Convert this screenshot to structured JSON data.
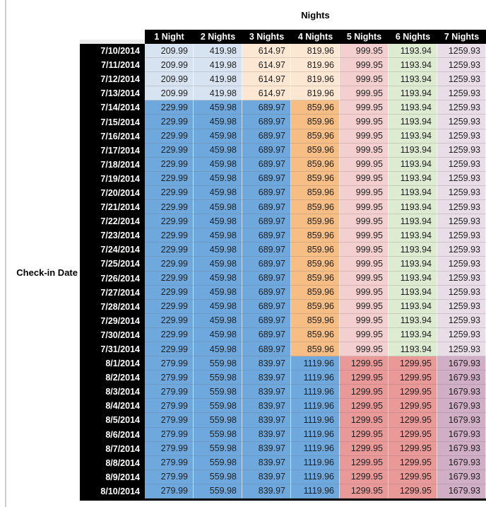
{
  "table": {
    "title": "Nights",
    "row_axis_label": "Check-in Date",
    "columns": [
      "1 Night",
      "2 Nights",
      "3 Nights",
      "4 Nights",
      "5 Nights",
      "6 Nights",
      "7 Nights"
    ],
    "tier_colors": {
      "A": [
        "light_blue",
        "light_blue",
        "light_orange",
        "light_orange",
        "light_red",
        "light_green",
        "light_purple"
      ],
      "B": [
        "medium_blue",
        "medium_blue",
        "medium_blue",
        "medium_orange",
        "light_red",
        "light_green",
        "light_purple"
      ],
      "C": [
        "medium_blue",
        "medium_blue",
        "medium_blue",
        "medium_blue",
        "medium_red",
        "medium_red",
        "medium_magenta"
      ]
    },
    "rows": [
      {
        "date": "7/10/2014",
        "tier": "A",
        "values": [
          "209.99",
          "419.98",
          "614.97",
          "819.96",
          "999.95",
          "1193.94",
          "1259.93"
        ]
      },
      {
        "date": "7/11/2014",
        "tier": "A",
        "values": [
          "209.99",
          "419.98",
          "614.97",
          "819.96",
          "999.95",
          "1193.94",
          "1259.93"
        ]
      },
      {
        "date": "7/12/2014",
        "tier": "A",
        "values": [
          "209.99",
          "419.98",
          "614.97",
          "819.96",
          "999.95",
          "1193.94",
          "1259.93"
        ]
      },
      {
        "date": "7/13/2014",
        "tier": "A",
        "values": [
          "209.99",
          "419.98",
          "614.97",
          "819.96",
          "999.95",
          "1193.94",
          "1259.93"
        ]
      },
      {
        "date": "7/14/2014",
        "tier": "B",
        "values": [
          "229.99",
          "459.98",
          "689.97",
          "859.96",
          "999.95",
          "1193.94",
          "1259.93"
        ]
      },
      {
        "date": "7/15/2014",
        "tier": "B",
        "values": [
          "229.99",
          "459.98",
          "689.97",
          "859.96",
          "999.95",
          "1193.94",
          "1259.93"
        ]
      },
      {
        "date": "7/16/2014",
        "tier": "B",
        "values": [
          "229.99",
          "459.98",
          "689.97",
          "859.96",
          "999.95",
          "1193.94",
          "1259.93"
        ]
      },
      {
        "date": "7/17/2014",
        "tier": "B",
        "values": [
          "229.99",
          "459.98",
          "689.97",
          "859.96",
          "999.95",
          "1193.94",
          "1259.93"
        ]
      },
      {
        "date": "7/18/2014",
        "tier": "B",
        "values": [
          "229.99",
          "459.98",
          "689.97",
          "859.96",
          "999.95",
          "1193.94",
          "1259.93"
        ]
      },
      {
        "date": "7/19/2014",
        "tier": "B",
        "values": [
          "229.99",
          "459.98",
          "689.97",
          "859.96",
          "999.95",
          "1193.94",
          "1259.93"
        ]
      },
      {
        "date": "7/20/2014",
        "tier": "B",
        "values": [
          "229.99",
          "459.98",
          "689.97",
          "859.96",
          "999.95",
          "1193.94",
          "1259.93"
        ]
      },
      {
        "date": "7/21/2014",
        "tier": "B",
        "values": [
          "229.99",
          "459.98",
          "689.97",
          "859.96",
          "999.95",
          "1193.94",
          "1259.93"
        ]
      },
      {
        "date": "7/22/2014",
        "tier": "B",
        "values": [
          "229.99",
          "459.98",
          "689.97",
          "859.96",
          "999.95",
          "1193.94",
          "1259.93"
        ]
      },
      {
        "date": "7/23/2014",
        "tier": "B",
        "values": [
          "229.99",
          "459.98",
          "689.97",
          "859.96",
          "999.95",
          "1193.94",
          "1259.93"
        ]
      },
      {
        "date": "7/24/2014",
        "tier": "B",
        "values": [
          "229.99",
          "459.98",
          "689.97",
          "859.96",
          "999.95",
          "1193.94",
          "1259.93"
        ]
      },
      {
        "date": "7/25/2014",
        "tier": "B",
        "values": [
          "229.99",
          "459.98",
          "689.97",
          "859.96",
          "999.95",
          "1193.94",
          "1259.93"
        ]
      },
      {
        "date": "7/26/2014",
        "tier": "B",
        "values": [
          "229.99",
          "459.98",
          "689.97",
          "859.96",
          "999.95",
          "1193.94",
          "1259.93"
        ]
      },
      {
        "date": "7/27/2014",
        "tier": "B",
        "values": [
          "229.99",
          "459.98",
          "689.97",
          "859.96",
          "999.95",
          "1193.94",
          "1259.93"
        ]
      },
      {
        "date": "7/28/2014",
        "tier": "B",
        "values": [
          "229.99",
          "459.98",
          "689.97",
          "859.96",
          "999.95",
          "1193.94",
          "1259.93"
        ]
      },
      {
        "date": "7/29/2014",
        "tier": "B",
        "values": [
          "229.99",
          "459.98",
          "689.97",
          "859.96",
          "999.95",
          "1193.94",
          "1259.93"
        ]
      },
      {
        "date": "7/30/2014",
        "tier": "B",
        "values": [
          "229.99",
          "459.98",
          "689.97",
          "859.96",
          "999.95",
          "1193.94",
          "1259.93"
        ]
      },
      {
        "date": "7/31/2014",
        "tier": "B",
        "values": [
          "229.99",
          "459.98",
          "689.97",
          "859.96",
          "999.95",
          "1193.94",
          "1259.93"
        ]
      },
      {
        "date": "8/1/2014",
        "tier": "C",
        "values": [
          "279.99",
          "559.98",
          "839.97",
          "1119.96",
          "1299.95",
          "1299.95",
          "1679.93"
        ]
      },
      {
        "date": "8/2/2014",
        "tier": "C",
        "values": [
          "279.99",
          "559.98",
          "839.97",
          "1119.96",
          "1299.95",
          "1299.95",
          "1679.93"
        ]
      },
      {
        "date": "8/3/2014",
        "tier": "C",
        "values": [
          "279.99",
          "559.98",
          "839.97",
          "1119.96",
          "1299.95",
          "1299.95",
          "1679.93"
        ]
      },
      {
        "date": "8/4/2014",
        "tier": "C",
        "values": [
          "279.99",
          "559.98",
          "839.97",
          "1119.96",
          "1299.95",
          "1299.95",
          "1679.93"
        ]
      },
      {
        "date": "8/5/2014",
        "tier": "C",
        "values": [
          "279.99",
          "559.98",
          "839.97",
          "1119.96",
          "1299.95",
          "1299.95",
          "1679.93"
        ]
      },
      {
        "date": "8/6/2014",
        "tier": "C",
        "values": [
          "279.99",
          "559.98",
          "839.97",
          "1119.96",
          "1299.95",
          "1299.95",
          "1679.93"
        ]
      },
      {
        "date": "8/7/2014",
        "tier": "C",
        "values": [
          "279.99",
          "559.98",
          "839.97",
          "1119.96",
          "1299.95",
          "1299.95",
          "1679.93"
        ]
      },
      {
        "date": "8/8/2014",
        "tier": "C",
        "values": [
          "279.99",
          "559.98",
          "839.97",
          "1119.96",
          "1299.95",
          "1299.95",
          "1679.93"
        ]
      },
      {
        "date": "8/9/2014",
        "tier": "C",
        "values": [
          "279.99",
          "559.98",
          "839.97",
          "1119.96",
          "1299.95",
          "1299.95",
          "1679.93"
        ]
      },
      {
        "date": "8/10/2014",
        "tier": "C",
        "values": [
          "279.99",
          "559.98",
          "839.97",
          "1119.96",
          "1299.95",
          "1299.95",
          "1679.93"
        ]
      }
    ]
  },
  "colors": {
    "light_blue": "#d7e3f0",
    "medium_blue": "#6fa8dc",
    "light_orange": "#fce8d2",
    "medium_orange": "#f6be85",
    "light_red": "#f3d0cf",
    "medium_red": "#ea9999",
    "light_green": "#ddecd1",
    "light_purple": "#e9dde8",
    "medium_magenta": "#d0aec6",
    "header_bg": "#000000",
    "header_text": "#ffffff"
  }
}
